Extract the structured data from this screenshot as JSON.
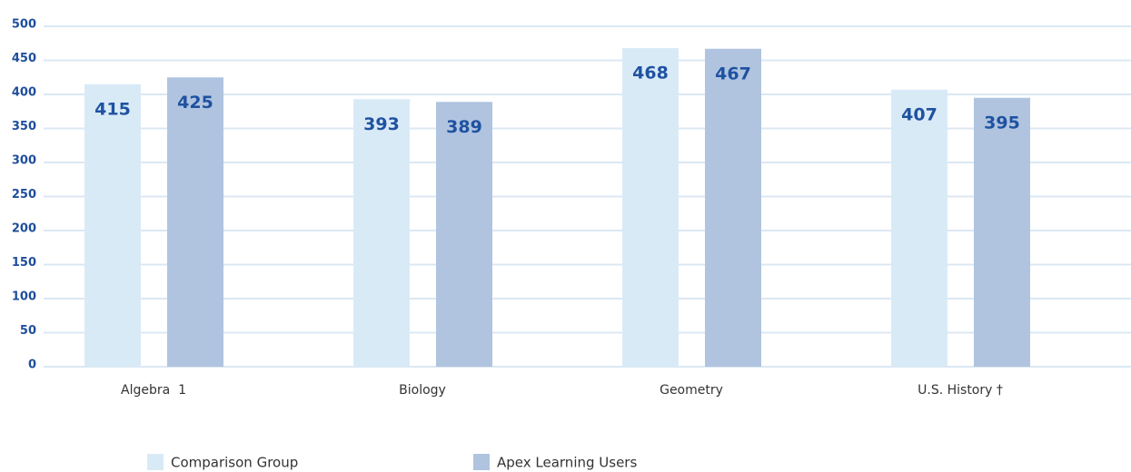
{
  "chart_data": {
    "type": "bar",
    "categories": [
      "Algebra  1",
      "Biology",
      "Geometry",
      "U.S. History †"
    ],
    "series": [
      {
        "name": "Comparison Group",
        "color": "#d9eaf7",
        "values": [
          415,
          393,
          468,
          407
        ]
      },
      {
        "name": "Apex Learning Users",
        "color": "#b0c4e0",
        "values": [
          425,
          389,
          467,
          395
        ]
      }
    ],
    "ylim": [
      0,
      500
    ],
    "yticks": [
      0,
      50,
      100,
      150,
      200,
      250,
      300,
      350,
      400,
      450,
      500
    ],
    "grid": true
  }
}
